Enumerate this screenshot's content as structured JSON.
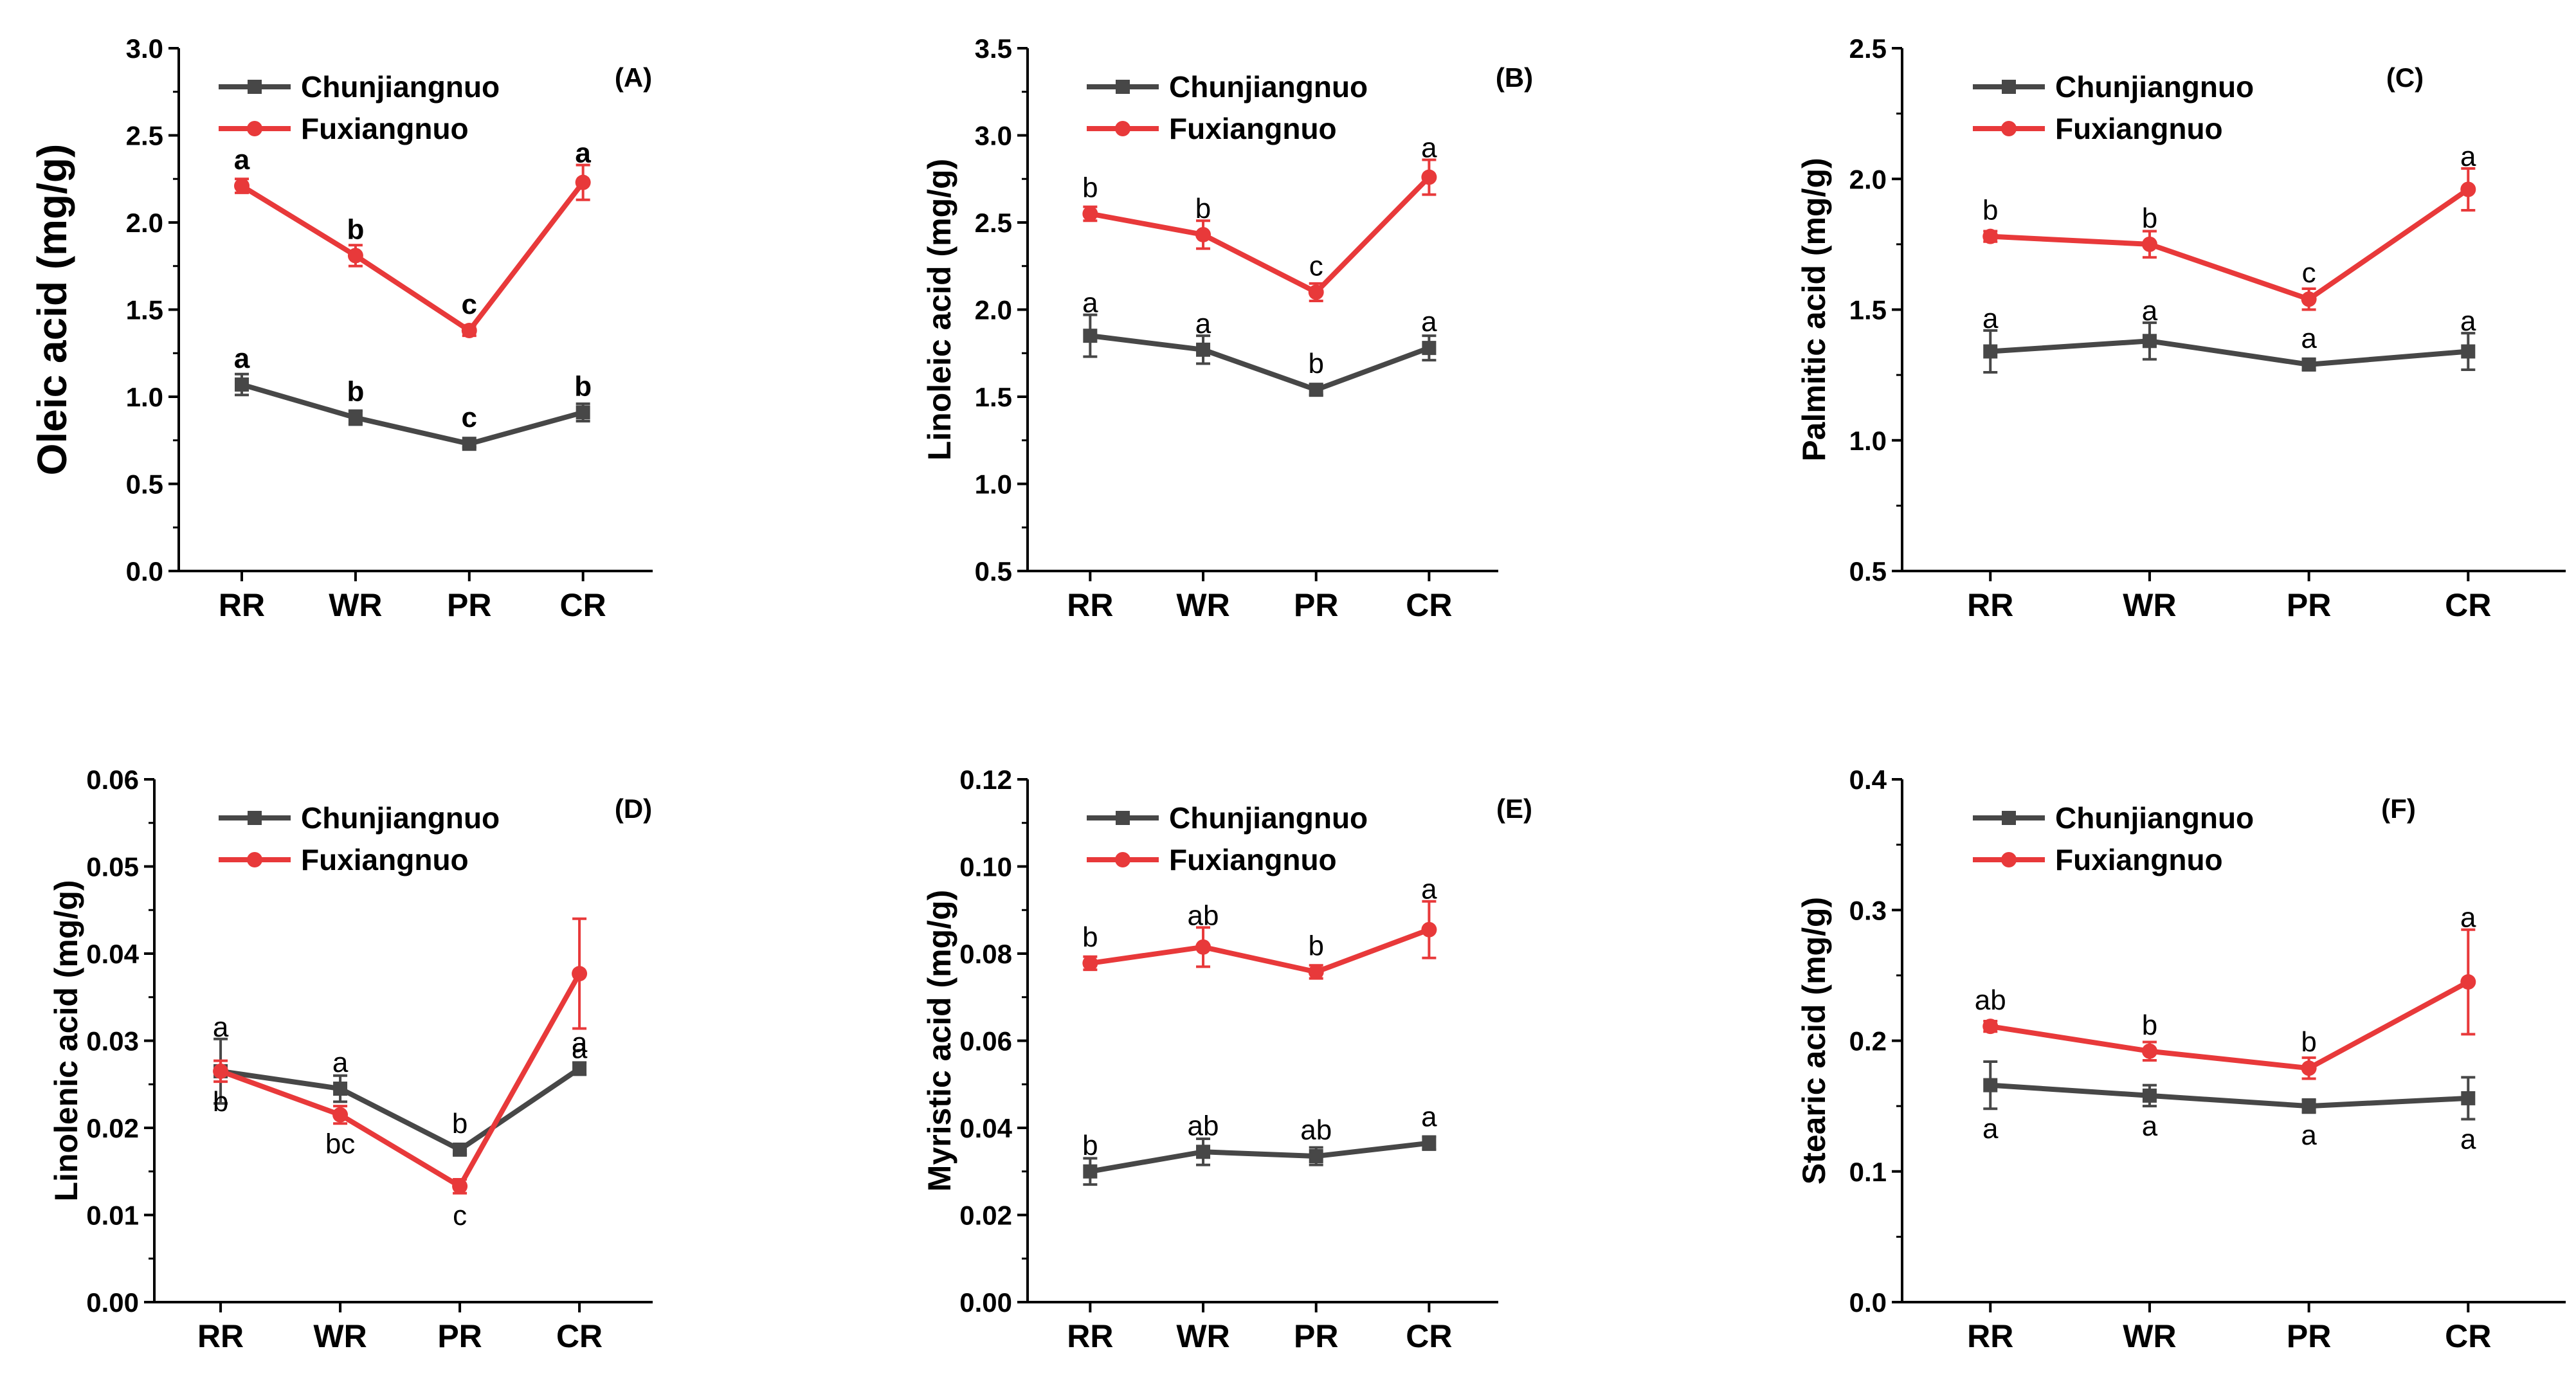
{
  "colors": {
    "chunjiangnuo": "#474747",
    "fuxiangnuo": "#e8393a",
    "axis": "#000000"
  },
  "chart_data": [
    {
      "type": "line",
      "title": "(A)",
      "ylabel": "Oleic acid (mg/g)",
      "categories": [
        "RR",
        "WR",
        "PR",
        "CR"
      ],
      "ylim": [
        0.0,
        3.0
      ],
      "yticks": [
        "0.0",
        "0.5",
        "1.0",
        "1.5",
        "2.0",
        "2.5",
        "3.0"
      ],
      "legend": "top-left",
      "bold_annotations": true,
      "series": [
        {
          "name": "Chunjiangnuo",
          "marker": "square",
          "values": [
            1.07,
            0.88,
            0.73,
            0.91
          ],
          "errors": [
            0.06,
            0.04,
            0.02,
            0.05
          ],
          "labels": [
            "a",
            "b",
            "c",
            "b"
          ],
          "label_pos": [
            "above",
            "above",
            "above",
            "above"
          ]
        },
        {
          "name": "Fuxiangnuo",
          "marker": "circle",
          "values": [
            2.21,
            1.81,
            1.38,
            2.23
          ],
          "errors": [
            0.04,
            0.06,
            0.03,
            0.1
          ],
          "labels": [
            "a",
            "b",
            "c",
            "a"
          ],
          "label_pos": [
            "above",
            "above",
            "above",
            "above"
          ]
        }
      ]
    },
    {
      "type": "line",
      "title": "(B)",
      "ylabel": "Linoleic acid (mg/g)",
      "categories": [
        "RR",
        "WR",
        "PR",
        "CR"
      ],
      "ylim": [
        0.5,
        3.5
      ],
      "yticks": [
        "0.5",
        "1.0",
        "1.5",
        "2.0",
        "2.5",
        "3.0",
        "3.5"
      ],
      "legend": "top-left",
      "bold_annotations": false,
      "series": [
        {
          "name": "Chunjiangnuo",
          "marker": "square",
          "values": [
            1.85,
            1.77,
            1.54,
            1.78
          ],
          "errors": [
            0.12,
            0.08,
            0.03,
            0.07
          ],
          "labels": [
            "a",
            "a",
            "b",
            "a"
          ],
          "label_pos": [
            "above",
            "above",
            "above",
            "above"
          ]
        },
        {
          "name": "Fuxiangnuo",
          "marker": "circle",
          "values": [
            2.55,
            2.43,
            2.1,
            2.76
          ],
          "errors": [
            0.04,
            0.08,
            0.05,
            0.1
          ],
          "labels": [
            "b",
            "b",
            "c",
            "a"
          ],
          "label_pos": [
            "above",
            "above",
            "above",
            "above"
          ]
        }
      ]
    },
    {
      "type": "line",
      "title": "(C)",
      "ylabel": "Palmitic acid (mg/g)",
      "categories": [
        "RR",
        "WR",
        "PR",
        "CR"
      ],
      "ylim": [
        0.5,
        2.5
      ],
      "yticks": [
        "0.5",
        "1.0",
        "1.5",
        "2.0",
        "2.5"
      ],
      "legend": "top-left",
      "bold_annotations": false,
      "series": [
        {
          "name": "Chunjiangnuo",
          "marker": "square",
          "values": [
            1.34,
            1.38,
            1.29,
            1.34
          ],
          "errors": [
            0.08,
            0.07,
            0.02,
            0.07
          ],
          "labels": [
            "a",
            "a",
            "a",
            "a"
          ],
          "label_pos": [
            "above",
            "above",
            "above",
            "above"
          ]
        },
        {
          "name": "Fuxiangnuo",
          "marker": "circle",
          "values": [
            1.78,
            1.75,
            1.54,
            1.96
          ],
          "errors": [
            0.02,
            0.05,
            0.04,
            0.08
          ],
          "labels": [
            "b",
            "b",
            "c",
            "a"
          ],
          "label_pos": [
            "above",
            "above",
            "above",
            "above"
          ]
        }
      ]
    },
    {
      "type": "line",
      "title": "(D)",
      "ylabel": "Linolenic acid (mg/g)",
      "categories": [
        "RR",
        "WR",
        "PR",
        "CR"
      ],
      "ylim": [
        0.0,
        0.06
      ],
      "yticks": [
        "0.00",
        "0.01",
        "0.02",
        "0.03",
        "0.04",
        "0.05",
        "0.06"
      ],
      "legend": "top-left",
      "bold_annotations": false,
      "series": [
        {
          "name": "Chunjiangnuo",
          "marker": "square",
          "values": [
            0.0265,
            0.0245,
            0.0175,
            0.0268
          ],
          "errors": [
            0.0037,
            0.0015,
            0.0005,
            0.0007
          ],
          "labels": [
            "a",
            "a",
            "b",
            "a"
          ],
          "label_pos": [
            "above",
            "above",
            "above",
            "above"
          ]
        },
        {
          "name": "Fuxiangnuo",
          "marker": "circle",
          "values": [
            0.0265,
            0.0215,
            0.0133,
            0.0377
          ],
          "errors": [
            0.0012,
            0.001,
            0.0008,
            0.0063
          ],
          "labels": [
            "b",
            "bc",
            "c",
            "a"
          ],
          "label_pos": [
            "below",
            "below",
            "below",
            "below"
          ]
        }
      ]
    },
    {
      "type": "line",
      "title": "(E)",
      "ylabel": "Myristic acid (mg/g)",
      "categories": [
        "RR",
        "WR",
        "PR",
        "CR"
      ],
      "ylim": [
        0.0,
        0.12
      ],
      "yticks": [
        "0.00",
        "0.02",
        "0.04",
        "0.06",
        "0.08",
        "0.10",
        "0.12"
      ],
      "legend": "top-left",
      "bold_annotations": false,
      "series": [
        {
          "name": "Chunjiangnuo",
          "marker": "square",
          "values": [
            0.03,
            0.0345,
            0.0335,
            0.0365
          ],
          "errors": [
            0.003,
            0.003,
            0.002,
            0.0015
          ],
          "labels": [
            "b",
            "ab",
            "ab",
            "a"
          ],
          "label_pos": [
            "above",
            "above",
            "above",
            "above"
          ]
        },
        {
          "name": "Fuxiangnuo",
          "marker": "circle",
          "values": [
            0.0778,
            0.0815,
            0.0758,
            0.0855
          ],
          "errors": [
            0.0015,
            0.0045,
            0.0015,
            0.0065
          ],
          "labels": [
            "b",
            "ab",
            "b",
            "a"
          ],
          "label_pos": [
            "above",
            "above",
            "above",
            "above"
          ]
        }
      ]
    },
    {
      "type": "line",
      "title": "(F)",
      "ylabel": "Stearic acid (mg/g)",
      "categories": [
        "RR",
        "WR",
        "PR",
        "CR"
      ],
      "ylim": [
        0.0,
        0.4
      ],
      "yticks": [
        "0.0",
        "0.1",
        "0.2",
        "0.3",
        "0.4"
      ],
      "legend": "top-left",
      "bold_annotations": false,
      "series": [
        {
          "name": "Chunjiangnuo",
          "marker": "square",
          "values": [
            0.166,
            0.158,
            0.15,
            0.156
          ],
          "errors": [
            0.018,
            0.008,
            0.005,
            0.016
          ],
          "labels": [
            "a",
            "a",
            "a",
            "a"
          ],
          "label_pos": [
            "below",
            "below",
            "below",
            "below"
          ]
        },
        {
          "name": "Fuxiangnuo",
          "marker": "circle",
          "values": [
            0.211,
            0.192,
            0.179,
            0.245
          ],
          "errors": [
            0.004,
            0.007,
            0.008,
            0.04
          ],
          "labels": [
            "ab",
            "b",
            "b",
            "a"
          ],
          "label_pos": [
            "above",
            "above",
            "above",
            "above"
          ]
        }
      ]
    }
  ]
}
